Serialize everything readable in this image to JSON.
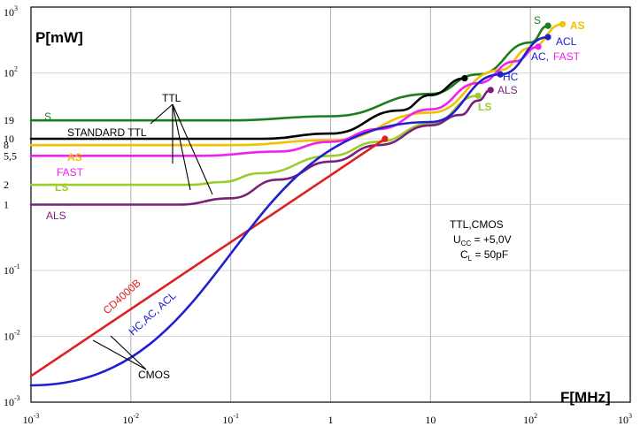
{
  "chart_data": {
    "type": "line",
    "title": "",
    "xlabel": "F[MHz]",
    "ylabel": "P[mW]",
    "xscale": "log",
    "yscale": "log",
    "xlim": [
      0.001,
      1000
    ],
    "ylim": [
      0.001,
      1000
    ],
    "grid": true,
    "x_tick_labels": [
      {
        "value": 0.001,
        "base": "10",
        "exp": "-3"
      },
      {
        "value": 0.01,
        "base": "10",
        "exp": "-2"
      },
      {
        "value": 0.1,
        "base": "10",
        "exp": "-1"
      },
      {
        "value": 1,
        "base": "1",
        "exp": ""
      },
      {
        "value": 10,
        "base": "10",
        "exp": ""
      },
      {
        "value": 100,
        "base": "10",
        "exp": "2"
      },
      {
        "value": 1000,
        "base": "10",
        "exp": "3"
      }
    ],
    "y_tick_labels": [
      {
        "value": 0.001,
        "base": "10",
        "exp": "-3"
      },
      {
        "value": 0.01,
        "base": "10",
        "exp": "-2"
      },
      {
        "value": 0.1,
        "base": "10",
        "exp": "-1"
      },
      {
        "value": 1,
        "base": "1",
        "exp": ""
      },
      {
        "value": 2,
        "base": "2",
        "exp": ""
      },
      {
        "value": 5.5,
        "base": "5,5",
        "exp": ""
      },
      {
        "value": 8,
        "base": "8",
        "exp": ""
      },
      {
        "value": 10,
        "base": "10",
        "exp": ""
      },
      {
        "value": 19,
        "base": "19",
        "exp": ""
      },
      {
        "value": 100,
        "base": "10",
        "exp": "2"
      },
      {
        "value": 1000,
        "base": "10",
        "exp": "3"
      }
    ],
    "series": [
      {
        "name": "S",
        "color": "#1a7f1a",
        "x": [
          0.001,
          0.1,
          1,
          10,
          30,
          100,
          150
        ],
        "y": [
          19,
          19,
          22,
          48,
          95,
          290,
          520
        ]
      },
      {
        "name": "STANDARD TTL",
        "color": "#000000",
        "x": [
          0.001,
          0.2,
          1,
          5,
          10,
          22
        ],
        "y": [
          10,
          10,
          12,
          27,
          46,
          83
        ]
      },
      {
        "name": "AS",
        "color": "#f2c200",
        "x": [
          0.001,
          0.1,
          1,
          10,
          50,
          100,
          210
        ],
        "y": [
          8,
          8,
          9.5,
          25,
          110,
          240,
          550
        ]
      },
      {
        "name": "FAST",
        "color": "#f020f0",
        "x": [
          0.001,
          0.05,
          0.3,
          1,
          3,
          10,
          30,
          70,
          120
        ],
        "y": [
          5.5,
          5.5,
          6.4,
          9,
          14,
          28,
          70,
          150,
          250
        ]
      },
      {
        "name": "LS",
        "color": "#9ccc2a",
        "x": [
          0.001,
          0.04,
          0.08,
          0.2,
          1,
          3,
          10,
          30
        ],
        "y": [
          2,
          2,
          2.2,
          3,
          5.5,
          9,
          17,
          45
        ]
      },
      {
        "name": "ALS",
        "color": "#7a1f7a",
        "x": [
          0.001,
          0.03,
          0.1,
          0.3,
          1,
          3,
          10,
          20,
          30,
          40
        ],
        "y": [
          1,
          1,
          1.25,
          2.4,
          4.5,
          8,
          16,
          23,
          38,
          55
        ]
      },
      {
        "name": "CD4000B",
        "color": "#e02020",
        "x": [
          0.001,
          3.5
        ],
        "y": [
          0.0025,
          10
        ]
      },
      {
        "name": "HC",
        "color": "#2020d0",
        "x": [
          0.001,
          10,
          50,
          150
        ],
        "y": [
          0.0018,
          18,
          95,
          350
        ]
      }
    ],
    "end_markers": [
      {
        "series": "S",
        "x": 150,
        "y": 520,
        "color": "#1a7f1a"
      },
      {
        "series": "AS",
        "x": 210,
        "y": 550,
        "color": "#f2c200"
      },
      {
        "series": "HC",
        "x": 150,
        "y": 350,
        "color": "#2020d0"
      },
      {
        "series": "FAST",
        "x": 120,
        "y": 250,
        "color": "#f020f0"
      },
      {
        "series": "STANDARD TTL",
        "x": 22,
        "y": 83,
        "color": "#000000"
      },
      {
        "series": "HC",
        "x": 50,
        "y": 95,
        "color": "#2020d0"
      },
      {
        "series": "ALS",
        "x": 40,
        "y": 55,
        "color": "#7a1f7a"
      },
      {
        "series": "LS",
        "x": 30,
        "y": 45,
        "color": "#9ccc2a"
      },
      {
        "series": "CD4000B",
        "x": 3.5,
        "y": 10,
        "color": "#e02020"
      }
    ],
    "curve_labels": {
      "s_left": "S",
      "standard_ttl": "STANDARD TTL",
      "as_left": "AS",
      "fast_left": "FAST",
      "ls_left": "LS",
      "als_left": "ALS",
      "s_right": "S",
      "as_right": "AS",
      "acl_right": "ACL",
      "ac_right": "AC,",
      "fast_right": "FAST",
      "hc_right": "HC",
      "als_right": "ALS",
      "ls_right": "LS",
      "cd4000b": "CD4000B",
      "hcacacl": "HC,AC, ACL"
    },
    "group_labels": {
      "ttl": "TTL",
      "cmos": "CMOS"
    },
    "info_box": {
      "line1": "TTL,CMOS",
      "line2_main": "U",
      "line2_sub": "CC",
      "line2_rest": " = +5,0V",
      "line3_main": "C",
      "line3_sub": "L",
      "line3_rest": " = 50pF"
    }
  }
}
